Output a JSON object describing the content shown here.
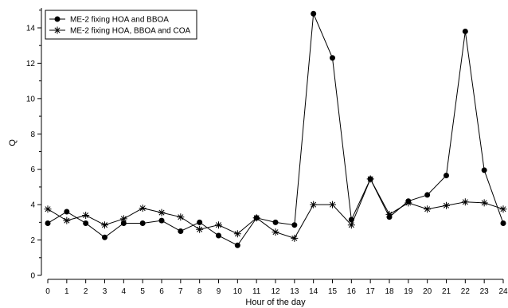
{
  "chart_data": {
    "type": "line",
    "title": "",
    "xlabel": "Hour of the day",
    "ylabel": "Q",
    "x": [
      0,
      1,
      2,
      3,
      4,
      5,
      6,
      7,
      8,
      9,
      10,
      11,
      12,
      13,
      14,
      15,
      16,
      17,
      18,
      19,
      20,
      21,
      22,
      23,
      24
    ],
    "xlim": [
      0,
      24
    ],
    "ylim": [
      0,
      15
    ],
    "xticks": [
      0,
      1,
      2,
      3,
      4,
      5,
      6,
      7,
      8,
      9,
      10,
      11,
      12,
      13,
      14,
      15,
      16,
      17,
      18,
      19,
      20,
      21,
      22,
      23,
      24
    ],
    "yticks": [
      0,
      2,
      4,
      6,
      8,
      10,
      12,
      14
    ],
    "grid": false,
    "legend_position": "top-left",
    "series": [
      {
        "name": "ME-2 fixing HOA and BBOA",
        "marker": "filled-circle",
        "color": "#000000",
        "values": [
          2.95,
          3.6,
          2.95,
          2.15,
          2.95,
          2.95,
          3.1,
          2.5,
          3.0,
          2.25,
          1.7,
          3.25,
          3.0,
          2.85,
          14.8,
          12.3,
          3.15,
          5.45,
          3.3,
          4.2,
          4.55,
          5.65,
          13.8,
          5.95,
          2.95
        ]
      },
      {
        "name": "ME-2 fixing HOA, BBOA and COA",
        "marker": "asterisk",
        "color": "#000000",
        "values": [
          3.75,
          3.1,
          3.4,
          2.85,
          3.2,
          3.8,
          3.55,
          3.3,
          2.6,
          2.85,
          2.35,
          3.25,
          2.45,
          2.1,
          4.0,
          4.0,
          2.85,
          5.45,
          3.45,
          4.1,
          3.75,
          3.95,
          4.15,
          4.1,
          3.75
        ]
      }
    ]
  }
}
